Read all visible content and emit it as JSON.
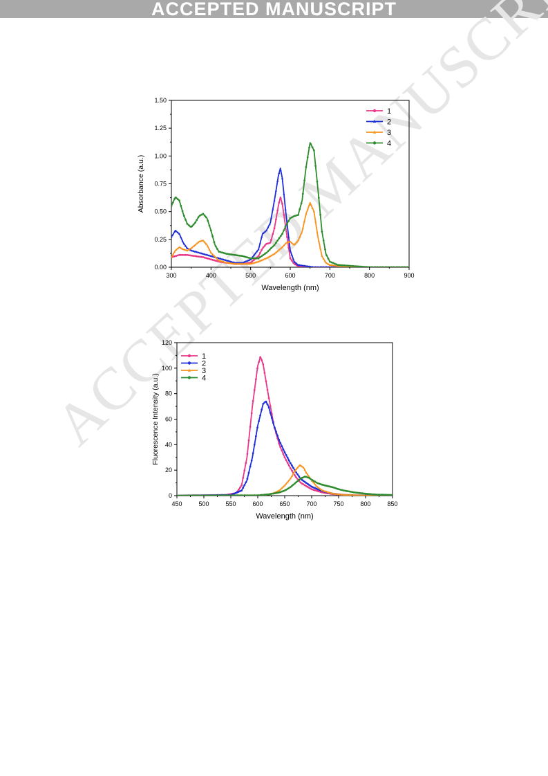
{
  "banner": {
    "text": "ACCEPTED MANUSCRIPT"
  },
  "watermark": {
    "text": "ACCEPTED MANUSCRIPT"
  },
  "chart_data": [
    {
      "type": "line",
      "title": "",
      "xlabel": "Wavelength (nm)",
      "ylabel": "Absorbance (a.u.)",
      "xlim": [
        300,
        900
      ],
      "ylim": [
        0,
        1.5
      ],
      "xticks": [
        "300",
        "400",
        "500",
        "600",
        "700",
        "800",
        "900"
      ],
      "yticks": [
        "0.00",
        "0.25",
        "0.50",
        "0.75",
        "1.00",
        "1.25",
        "1.50"
      ],
      "legend_position": "top-right",
      "grid": false,
      "series": [
        {
          "name": "1",
          "color": "#e8388a",
          "marker": "circle",
          "x": [
            300,
            320,
            340,
            360,
            380,
            400,
            420,
            440,
            460,
            480,
            500,
            520,
            530,
            540,
            550,
            560,
            570,
            575,
            580,
            590,
            600,
            610,
            620,
            640,
            660,
            700,
            800,
            900
          ],
          "y": [
            0.09,
            0.11,
            0.11,
            0.1,
            0.09,
            0.07,
            0.05,
            0.04,
            0.03,
            0.03,
            0.04,
            0.1,
            0.17,
            0.21,
            0.22,
            0.35,
            0.55,
            0.63,
            0.57,
            0.32,
            0.08,
            0.03,
            0.01,
            0.0,
            0.0,
            0.0,
            0.0,
            0.0
          ]
        },
        {
          "name": "2",
          "color": "#1f2fd8",
          "marker": "triangle",
          "x": [
            300,
            310,
            320,
            330,
            340,
            350,
            360,
            380,
            400,
            420,
            440,
            460,
            480,
            500,
            520,
            530,
            540,
            550,
            560,
            570,
            575,
            580,
            590,
            600,
            610,
            620,
            640,
            660,
            700,
            800,
            900
          ],
          "y": [
            0.27,
            0.33,
            0.3,
            0.22,
            0.17,
            0.15,
            0.14,
            0.12,
            0.1,
            0.08,
            0.06,
            0.04,
            0.04,
            0.07,
            0.16,
            0.3,
            0.33,
            0.4,
            0.6,
            0.82,
            0.89,
            0.8,
            0.45,
            0.15,
            0.05,
            0.02,
            0.01,
            0.0,
            0.0,
            0.0,
            0.0
          ]
        },
        {
          "name": "3",
          "color": "#f7931e",
          "marker": "triangle",
          "x": [
            300,
            310,
            320,
            330,
            340,
            350,
            360,
            370,
            380,
            390,
            400,
            420,
            440,
            460,
            480,
            500,
            520,
            540,
            560,
            580,
            590,
            600,
            610,
            620,
            630,
            640,
            650,
            660,
            670,
            680,
            690,
            700,
            720,
            800,
            900
          ],
          "y": [
            0.09,
            0.15,
            0.18,
            0.16,
            0.15,
            0.17,
            0.2,
            0.23,
            0.24,
            0.2,
            0.13,
            0.06,
            0.04,
            0.03,
            0.03,
            0.03,
            0.05,
            0.08,
            0.12,
            0.18,
            0.22,
            0.23,
            0.2,
            0.24,
            0.32,
            0.48,
            0.58,
            0.5,
            0.27,
            0.1,
            0.04,
            0.02,
            0.01,
            0.0,
            0.0
          ]
        },
        {
          "name": "4",
          "color": "#2e8b2e",
          "marker": "circle",
          "x": [
            300,
            310,
            320,
            330,
            340,
            350,
            360,
            370,
            380,
            390,
            400,
            410,
            420,
            440,
            460,
            480,
            500,
            520,
            540,
            560,
            580,
            590,
            600,
            610,
            620,
            630,
            640,
            650,
            660,
            670,
            680,
            690,
            700,
            720,
            760,
            800,
            900
          ],
          "y": [
            0.55,
            0.63,
            0.6,
            0.48,
            0.39,
            0.36,
            0.4,
            0.46,
            0.48,
            0.44,
            0.33,
            0.2,
            0.14,
            0.12,
            0.11,
            0.1,
            0.08,
            0.08,
            0.13,
            0.2,
            0.3,
            0.38,
            0.44,
            0.46,
            0.47,
            0.6,
            0.9,
            1.12,
            1.05,
            0.7,
            0.32,
            0.12,
            0.05,
            0.02,
            0.01,
            0.0,
            0.0
          ]
        }
      ]
    },
    {
      "type": "line",
      "title": "",
      "xlabel": "Wavelength (nm)",
      "ylabel": "Fluorescence Intensity (a.u.)",
      "xlim": [
        450,
        850
      ],
      "ylim": [
        0,
        120
      ],
      "xticks": [
        "450",
        "500",
        "550",
        "600",
        "650",
        "700",
        "750",
        "800",
        "850"
      ],
      "yticks": [
        "0",
        "20",
        "40",
        "60",
        "80",
        "100",
        "120"
      ],
      "legend_position": "top-left",
      "grid": false,
      "series": [
        {
          "name": "1",
          "color": "#e8388a",
          "marker": "circle",
          "x": [
            450,
            540,
            560,
            570,
            580,
            590,
            600,
            605,
            610,
            620,
            630,
            640,
            650,
            660,
            670,
            680,
            700,
            720,
            740,
            760,
            780,
            800,
            850
          ],
          "y": [
            0,
            0.5,
            2,
            8,
            30,
            70,
            102,
            109,
            103,
            78,
            55,
            40,
            30,
            22,
            15,
            10,
            5,
            2.5,
            1.2,
            0.6,
            0.3,
            0.1,
            0
          ]
        },
        {
          "name": "2",
          "color": "#1f2fd8",
          "marker": "circle",
          "x": [
            450,
            550,
            570,
            580,
            590,
            600,
            610,
            615,
            620,
            630,
            640,
            650,
            660,
            670,
            680,
            700,
            720,
            740,
            760,
            780,
            800,
            850
          ],
          "y": [
            0,
            0.5,
            4,
            12,
            30,
            55,
            72,
            74,
            70,
            55,
            43,
            34,
            26,
            19,
            13,
            7,
            3.5,
            1.5,
            0.6,
            0.2,
            0.1,
            0
          ]
        },
        {
          "name": "3",
          "color": "#f7931e",
          "marker": "triangle",
          "x": [
            450,
            600,
            620,
            630,
            640,
            650,
            660,
            670,
            678,
            685,
            690,
            700,
            710,
            720,
            740,
            760,
            800,
            850
          ],
          "y": [
            0,
            0.2,
            1,
            2,
            4,
            8,
            13,
            20,
            24,
            22,
            18,
            12,
            7,
            4,
            1.5,
            0.6,
            0.1,
            0
          ]
        },
        {
          "name": "4",
          "color": "#2e8b2e",
          "marker": "circle",
          "x": [
            450,
            600,
            620,
            640,
            650,
            660,
            670,
            680,
            688,
            695,
            700,
            710,
            720,
            730,
            740,
            750,
            760,
            780,
            800,
            820,
            850
          ],
          "y": [
            0,
            0.2,
            1,
            2.5,
            4,
            6.5,
            10,
            13.5,
            15,
            14,
            12.5,
            10,
            8.5,
            7.5,
            6.5,
            5,
            4,
            2.5,
            1.5,
            0.8,
            0.5
          ]
        }
      ]
    }
  ]
}
